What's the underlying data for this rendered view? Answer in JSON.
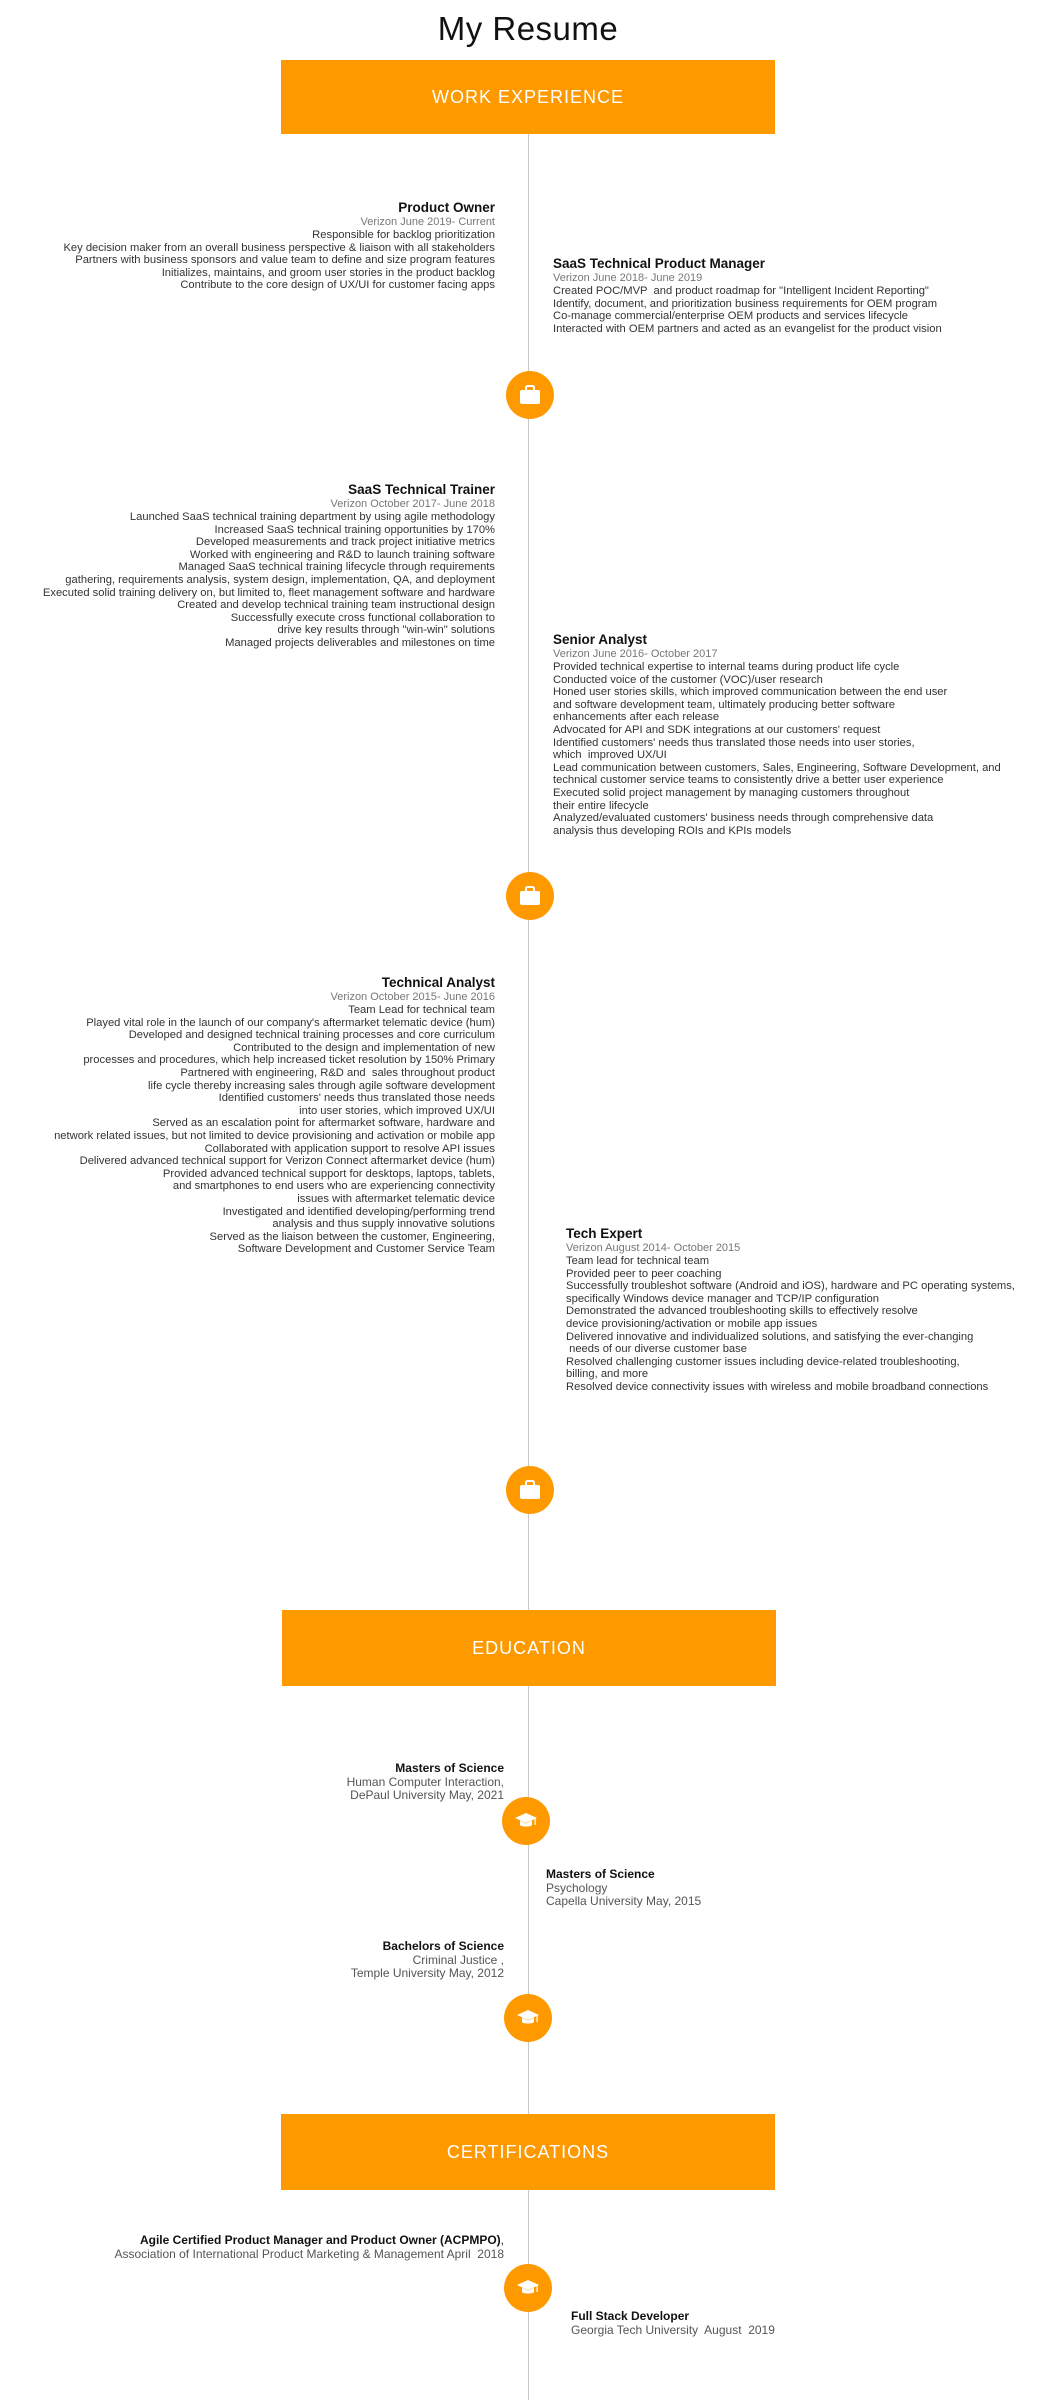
{
  "page_title": "My Resume",
  "colors": {
    "accent": "#fe9a00",
    "line": "#c8c8c8"
  },
  "sections": {
    "work": "WORK EXPERIENCE",
    "education": "EDUCATION",
    "certifications": "CERTIFICATIONS"
  },
  "icons": {
    "work": "briefcase-icon",
    "education": "graduation-cap-icon"
  },
  "work": [
    {
      "title": "Product Owner",
      "subtitle": "Verizon June 2019- Current",
      "lines": [
        "Responsible for backlog prioritization",
        "Key decision maker from an overall business perspective & liaison with all stakeholders",
        "Partners with business sponsors and value team to define and size program features",
        "Initializes, maintains, and groom user stories in the product backlog",
        "Contribute to the core design of UX/UI for customer facing apps"
      ]
    },
    {
      "title": "SaaS Technical Product Manager",
      "subtitle": "Verizon June 2018- June 2019",
      "lines": [
        "Created POC/MVP  and product roadmap for \"Intelligent Incident Reporting\"",
        "Identify, document, and prioritization business requirements for OEM program",
        "Co-manage commercial/enterprise OEM products and services lifecycle",
        "Interacted with OEM partners and acted as an evangelist for the product vision"
      ]
    },
    {
      "title": "SaaS Technical Trainer",
      "subtitle": "Verizon October 2017- June 2018",
      "lines": [
        "Launched SaaS technical training department by using agile methodology",
        "Increased SaaS technical training opportunities by 170%",
        "Developed measurements and track project initiative metrics",
        "Worked with engineering and R&D to launch training software",
        "Managed SaaS technical training lifecycle through requirements",
        "gathering, requirements analysis, system design, implementation, QA, and deployment",
        "Executed solid training delivery on, but limited to, fleet management software and hardware",
        "Created and develop technical training team instructional design",
        "Successfully execute cross functional collaboration to",
        "drive key results through \"win-win\" solutions",
        "Managed projects deliverables and milestones on time"
      ]
    },
    {
      "title": "Senior Analyst",
      "subtitle": "Verizon June 2016- October 2017",
      "lines": [
        "Provided technical expertise to internal teams during product life cycle",
        "Conducted voice of the customer (VOC)/user research",
        "Honed user stories skills, which improved communication between the end user",
        "and software development team, ultimately producing better software",
        "enhancements after each release",
        "Advocated for API and SDK integrations at our customers' request",
        "Identified customers' needs thus translated those needs into user stories,",
        "which  improved UX/UI",
        "Lead communication between customers, Sales, Engineering, Software Development, and",
        "technical customer service teams to consistently drive a better user experience",
        "Executed solid project management by managing customers throughout",
        "their entire lifecycle",
        "Analyzed/evaluated customers' business needs through comprehensive data",
        "analysis thus developing ROIs and KPIs models"
      ]
    },
    {
      "title": "Technical Analyst",
      "subtitle": "Verizon October 2015- June 2016",
      "lines": [
        "Team Lead for technical team",
        "Played vital role in the launch of our company's aftermarket telematic device (hum)",
        "Developed and designed technical training processes and core curriculum",
        "Contributed to the design and implementation of new",
        "processes and procedures, which help increased ticket resolution by 150% Primary",
        "Partnered with engineering, R&D and  sales throughout product",
        "life cycle thereby increasing sales through agile software development",
        "Identified customers' needs thus translated those needs",
        "into user stories, which improved UX/UI",
        "Served as an escalation point for aftermarket software, hardware and",
        "network related issues, but not limited to device provisioning and activation or mobile app",
        "Collaborated with application support to resolve API issues",
        "Delivered advanced technical support for Verizon Connect aftermarket device (hum)",
        "Provided advanced technical support for desktops, laptops, tablets,",
        "and smartphones to end users who are experiencing connectivity",
        "issues with aftermarket telematic device",
        "Investigated and identified developing/performing trend",
        "analysis and thus supply innovative solutions",
        "Served as the liaison between the customer, Engineering,",
        "Software Development and Customer Service Team"
      ]
    },
    {
      "title": "Tech Expert",
      "subtitle": "Verizon August 2014- October 2015",
      "lines": [
        "Team lead for technical team",
        "Provided peer to peer coaching",
        "Successfully troubleshot software (Android and iOS), hardware and PC operating systems,",
        "specifically Windows device manager and TCP/IP configuration",
        "Demonstrated the advanced troubleshooting skills to effectively resolve",
        "device provisioning/activation or mobile app issues",
        "Delivered innovative and individualized solutions, and satisfying the ever-changing",
        " needs of our diverse customer base",
        "Resolved challenging customer issues including device-related troubleshooting,",
        "billing, and more",
        "Resolved device connectivity issues with wireless and mobile broadband connections"
      ]
    }
  ],
  "education": [
    {
      "title": "Masters of Science",
      "lines": [
        "Human Computer Interaction,",
        "DePaul University May, 2021"
      ]
    },
    {
      "title": "Masters of Science",
      "lines": [
        "Psychology",
        "Capella University May, 2015"
      ]
    },
    {
      "title": "Bachelors of Science",
      "lines": [
        "Criminal Justice ,",
        "Temple University May, 2012"
      ]
    }
  ],
  "certifications": [
    {
      "title": "Agile Certified Product Manager and Product Owner (ACPMPO)",
      "suffix": ",",
      "lines": [
        "Association of International Product Marketing & Management April  2018"
      ]
    },
    {
      "title": "Full Stack Developer",
      "lines": [
        "Georgia Tech University  August  2019"
      ]
    }
  ]
}
